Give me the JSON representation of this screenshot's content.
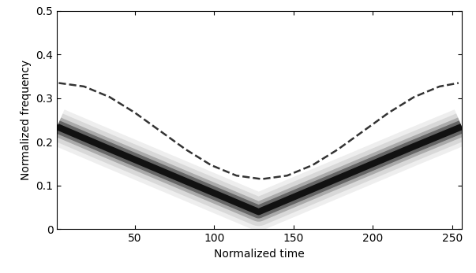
{
  "chart_data": {
    "type": "line",
    "x_label": "Normalized time",
    "y_label": "Normalized frequency",
    "xlim": [
      1,
      256
    ],
    "ylim": [
      0,
      0.5
    ],
    "xticks": [
      50,
      100,
      150,
      200,
      250
    ],
    "yticks": [
      0,
      0.1,
      0.2,
      0.3,
      0.4,
      0.5
    ],
    "grid": false,
    "series": [
      {
        "type": "band",
        "color": "#111111",
        "line_style": "solid",
        "x": [
          1,
          32,
          64,
          96,
          128,
          160,
          192,
          224,
          256
        ],
        "values": [
          0.235,
          0.187,
          0.138,
          0.089,
          0.04,
          0.089,
          0.138,
          0.187,
          0.235
        ]
      },
      {
        "type": "line",
        "color": "#333333",
        "line_style": "dashed",
        "x": [
          2,
          18,
          34,
          50,
          66,
          82,
          98,
          114,
          130,
          146,
          162,
          178,
          194,
          210,
          226,
          242,
          254
        ],
        "values": [
          0.335,
          0.327,
          0.303,
          0.267,
          0.225,
          0.183,
          0.147,
          0.123,
          0.115,
          0.123,
          0.147,
          0.183,
          0.225,
          0.267,
          0.303,
          0.327,
          0.335
        ]
      }
    ]
  }
}
